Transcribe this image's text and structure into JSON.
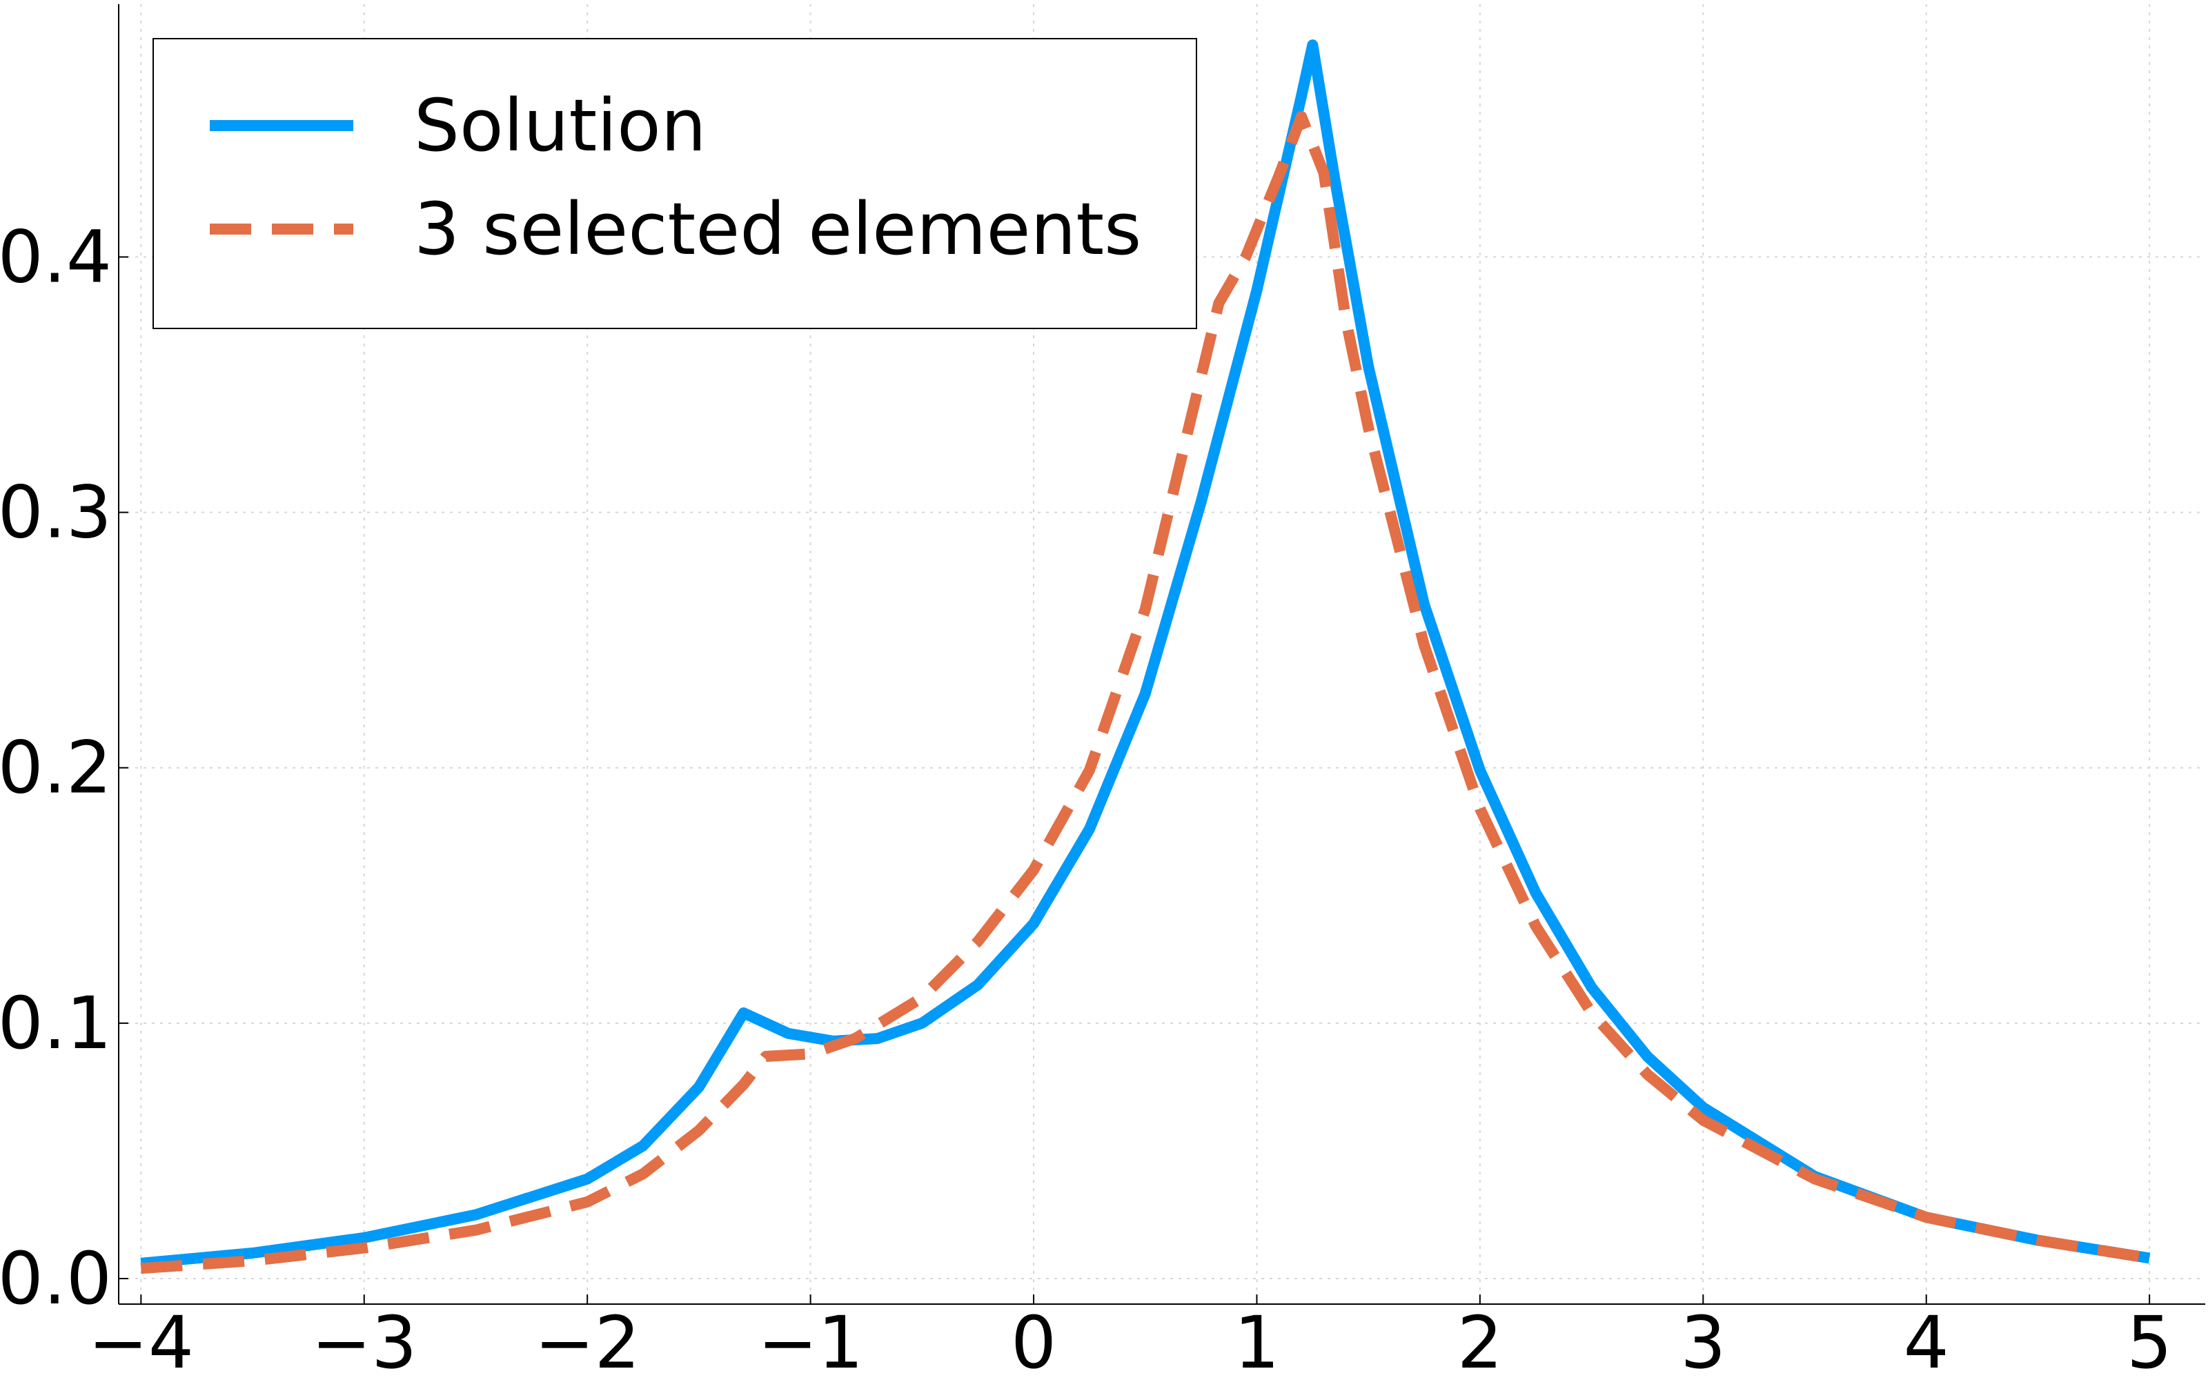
{
  "chart_data": {
    "type": "line",
    "title": "",
    "xlabel": "",
    "ylabel": "",
    "xlim": [
      -4.1,
      5.25
    ],
    "ylim": [
      -0.01,
      0.499
    ],
    "xticks": [
      -4,
      -3,
      -2,
      -1,
      0,
      1,
      2,
      3,
      4,
      5
    ],
    "xtick_labels": [
      "−4",
      "−3",
      "−2",
      "−1",
      "0",
      "1",
      "2",
      "3",
      "4",
      "5"
    ],
    "yticks": [
      0.0,
      0.1,
      0.2,
      0.3,
      0.4
    ],
    "ytick_labels": [
      "0.0",
      "0.1",
      "0.2",
      "0.3",
      "0.4"
    ],
    "grid": true,
    "legend_position": "top-left",
    "series": [
      {
        "name": "Solution",
        "color": "#009af9",
        "style": "solid",
        "points": [
          [
            -4.0,
            0.006
          ],
          [
            -3.5,
            0.01
          ],
          [
            -3.0,
            0.016
          ],
          [
            -2.5,
            0.025
          ],
          [
            -2.0,
            0.039
          ],
          [
            -1.75,
            0.052
          ],
          [
            -1.5,
            0.075
          ],
          [
            -1.3,
            0.104
          ],
          [
            -1.1,
            0.096
          ],
          [
            -0.9,
            0.093
          ],
          [
            -0.7,
            0.094
          ],
          [
            -0.5,
            0.1
          ],
          [
            -0.25,
            0.115
          ],
          [
            0.0,
            0.139
          ],
          [
            0.25,
            0.176
          ],
          [
            0.5,
            0.229
          ],
          [
            0.75,
            0.304
          ],
          [
            1.0,
            0.387
          ],
          [
            1.1,
            0.425
          ],
          [
            1.2,
            0.463
          ],
          [
            1.25,
            0.483
          ],
          [
            1.35,
            0.43
          ],
          [
            1.5,
            0.357
          ],
          [
            1.75,
            0.264
          ],
          [
            2.0,
            0.199
          ],
          [
            2.25,
            0.151
          ],
          [
            2.5,
            0.114
          ],
          [
            2.75,
            0.087
          ],
          [
            3.0,
            0.067
          ],
          [
            3.5,
            0.04
          ],
          [
            4.0,
            0.024
          ],
          [
            4.5,
            0.015
          ],
          [
            5.0,
            0.008
          ]
        ]
      },
      {
        "name": "3 selected elements",
        "color": "#e26f46",
        "style": "dashed",
        "points": [
          [
            -4.0,
            0.004
          ],
          [
            -3.5,
            0.007
          ],
          [
            -3.0,
            0.012
          ],
          [
            -2.5,
            0.019
          ],
          [
            -2.0,
            0.03
          ],
          [
            -1.75,
            0.041
          ],
          [
            -1.5,
            0.058
          ],
          [
            -1.3,
            0.076
          ],
          [
            -1.2,
            0.087
          ],
          [
            -1.0,
            0.088
          ],
          [
            -0.8,
            0.094
          ],
          [
            -0.5,
            0.11
          ],
          [
            -0.25,
            0.132
          ],
          [
            0.0,
            0.16
          ],
          [
            0.25,
            0.199
          ],
          [
            0.5,
            0.262
          ],
          [
            0.7,
            0.335
          ],
          [
            0.83,
            0.382
          ],
          [
            0.95,
            0.4
          ],
          [
            1.1,
            0.432
          ],
          [
            1.2,
            0.455
          ],
          [
            1.3,
            0.433
          ],
          [
            1.4,
            0.375
          ],
          [
            1.5,
            0.333
          ],
          [
            1.75,
            0.248
          ],
          [
            2.0,
            0.184
          ],
          [
            2.25,
            0.138
          ],
          [
            2.5,
            0.104
          ],
          [
            2.75,
            0.08
          ],
          [
            3.0,
            0.062
          ],
          [
            3.5,
            0.039
          ],
          [
            4.0,
            0.024
          ],
          [
            4.5,
            0.015
          ],
          [
            5.0,
            0.008
          ]
        ]
      }
    ]
  }
}
